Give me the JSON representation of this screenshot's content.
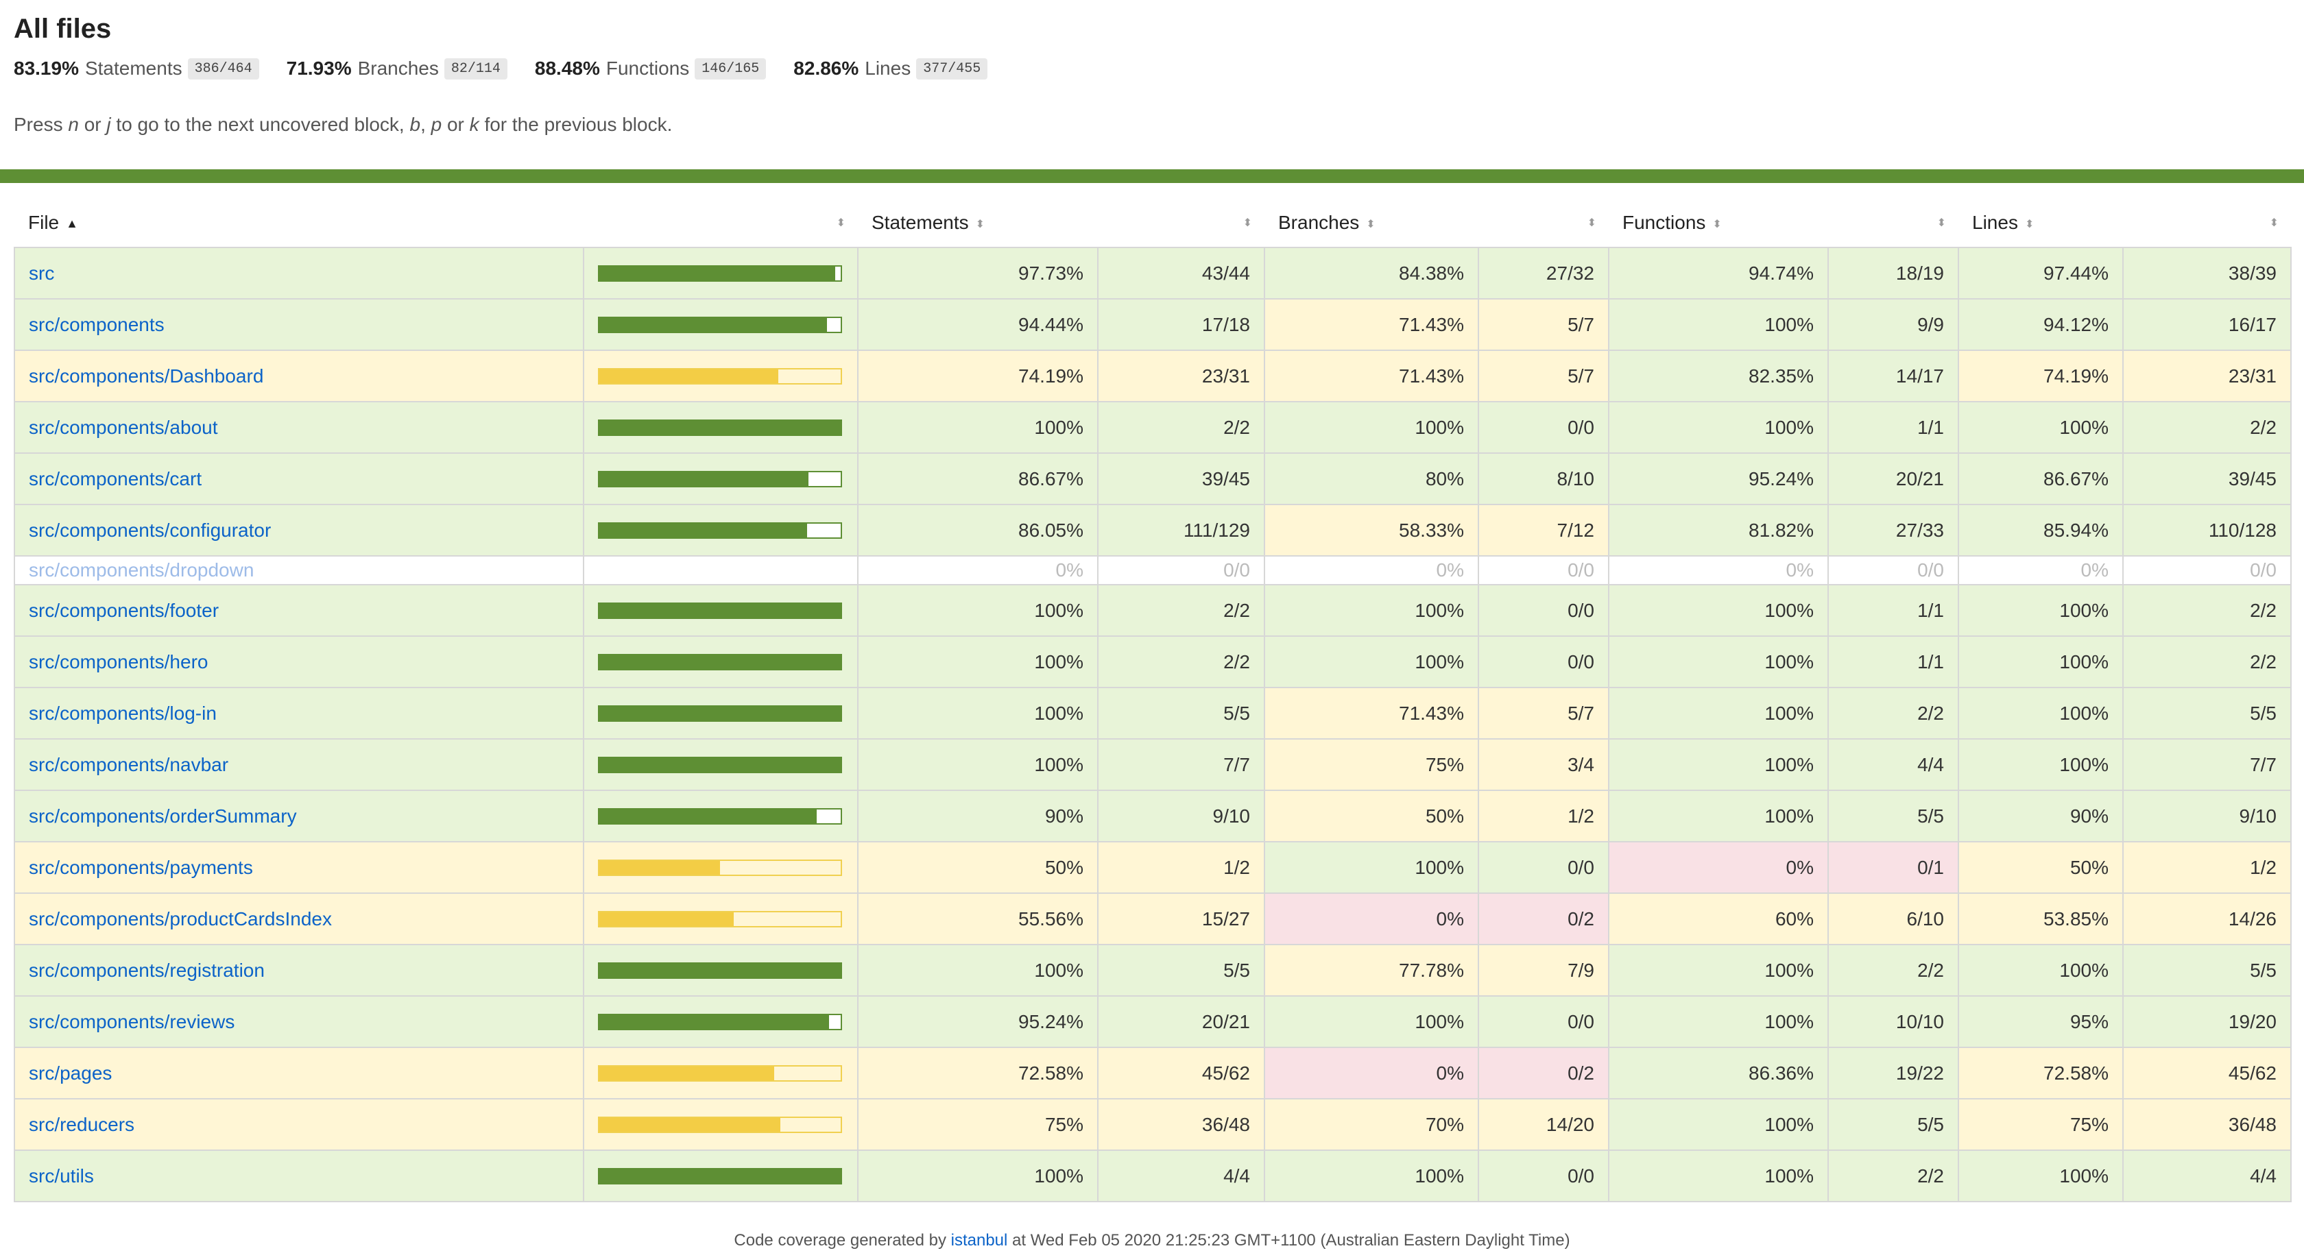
{
  "title": "All files",
  "summary": [
    {
      "pct": "83.19%",
      "label": "Statements",
      "frac": "386/464"
    },
    {
      "pct": "71.93%",
      "label": "Branches",
      "frac": "82/114"
    },
    {
      "pct": "88.48%",
      "label": "Functions",
      "frac": "146/165"
    },
    {
      "pct": "82.86%",
      "label": "Lines",
      "frac": "377/455"
    }
  ],
  "help": {
    "prefix": "Press ",
    "k1": "n",
    "or1": " or ",
    "k2": "j",
    "mid": " to go to the next uncovered block, ",
    "k3": "b",
    "sep": ", ",
    "k4": "p",
    "or2": " or ",
    "k5": "k",
    "suffix": " for the previous block."
  },
  "table": {
    "headers": {
      "file": "File",
      "statements": "Statements",
      "branches": "Branches",
      "functions": "Functions",
      "lines": "Lines"
    },
    "rows": [
      {
        "file": "src",
        "pct": 97.73,
        "row": "high",
        "s": "97.73%",
        "sf": "43/44",
        "sc": "high",
        "b": "84.38%",
        "bf": "27/32",
        "bc": "high",
        "f": "94.74%",
        "ff": "18/19",
        "fc": "high",
        "l": "97.44%",
        "lf": "38/39",
        "lc": "high"
      },
      {
        "file": "src/components",
        "pct": 94.44,
        "row": "high",
        "s": "94.44%",
        "sf": "17/18",
        "sc": "high",
        "b": "71.43%",
        "bf": "5/7",
        "bc": "medium",
        "f": "100%",
        "ff": "9/9",
        "fc": "high",
        "l": "94.12%",
        "lf": "16/17",
        "lc": "high"
      },
      {
        "file": "src/components/Dashboard",
        "pct": 74.19,
        "row": "medium",
        "s": "74.19%",
        "sf": "23/31",
        "sc": "medium",
        "b": "71.43%",
        "bf": "5/7",
        "bc": "medium",
        "f": "82.35%",
        "ff": "14/17",
        "fc": "high",
        "l": "74.19%",
        "lf": "23/31",
        "lc": "medium"
      },
      {
        "file": "src/components/about",
        "pct": 100,
        "row": "high",
        "s": "100%",
        "sf": "2/2",
        "sc": "high",
        "b": "100%",
        "bf": "0/0",
        "bc": "high",
        "f": "100%",
        "ff": "1/1",
        "fc": "high",
        "l": "100%",
        "lf": "2/2",
        "lc": "high"
      },
      {
        "file": "src/components/cart",
        "pct": 86.67,
        "row": "high",
        "s": "86.67%",
        "sf": "39/45",
        "sc": "high",
        "b": "80%",
        "bf": "8/10",
        "bc": "high",
        "f": "95.24%",
        "ff": "20/21",
        "fc": "high",
        "l": "86.67%",
        "lf": "39/45",
        "lc": "high"
      },
      {
        "file": "src/components/configurator",
        "pct": 86.05,
        "row": "high",
        "s": "86.05%",
        "sf": "111/129",
        "sc": "high",
        "b": "58.33%",
        "bf": "7/12",
        "bc": "medium",
        "f": "81.82%",
        "ff": "27/33",
        "fc": "high",
        "l": "85.94%",
        "lf": "110/128",
        "lc": "high"
      },
      {
        "file": "src/components/dropdown",
        "pct": 0,
        "row": "empty",
        "s": "0%",
        "sf": "0/0",
        "sc": "empty",
        "b": "0%",
        "bf": "0/0",
        "bc": "empty",
        "f": "0%",
        "ff": "0/0",
        "fc": "empty",
        "l": "0%",
        "lf": "0/0",
        "lc": "empty"
      },
      {
        "file": "src/components/footer",
        "pct": 100,
        "row": "high",
        "s": "100%",
        "sf": "2/2",
        "sc": "high",
        "b": "100%",
        "bf": "0/0",
        "bc": "high",
        "f": "100%",
        "ff": "1/1",
        "fc": "high",
        "l": "100%",
        "lf": "2/2",
        "lc": "high"
      },
      {
        "file": "src/components/hero",
        "pct": 100,
        "row": "high",
        "s": "100%",
        "sf": "2/2",
        "sc": "high",
        "b": "100%",
        "bf": "0/0",
        "bc": "high",
        "f": "100%",
        "ff": "1/1",
        "fc": "high",
        "l": "100%",
        "lf": "2/2",
        "lc": "high"
      },
      {
        "file": "src/components/log-in",
        "pct": 100,
        "row": "high",
        "s": "100%",
        "sf": "5/5",
        "sc": "high",
        "b": "71.43%",
        "bf": "5/7",
        "bc": "medium",
        "f": "100%",
        "ff": "2/2",
        "fc": "high",
        "l": "100%",
        "lf": "5/5",
        "lc": "high"
      },
      {
        "file": "src/components/navbar",
        "pct": 100,
        "row": "high",
        "s": "100%",
        "sf": "7/7",
        "sc": "high",
        "b": "75%",
        "bf": "3/4",
        "bc": "medium",
        "f": "100%",
        "ff": "4/4",
        "fc": "high",
        "l": "100%",
        "lf": "7/7",
        "lc": "high"
      },
      {
        "file": "src/components/orderSummary",
        "pct": 90,
        "row": "high",
        "s": "90%",
        "sf": "9/10",
        "sc": "high",
        "b": "50%",
        "bf": "1/2",
        "bc": "medium",
        "f": "100%",
        "ff": "5/5",
        "fc": "high",
        "l": "90%",
        "lf": "9/10",
        "lc": "high"
      },
      {
        "file": "src/components/payments",
        "pct": 50,
        "row": "medium",
        "s": "50%",
        "sf": "1/2",
        "sc": "medium",
        "b": "100%",
        "bf": "0/0",
        "bc": "high",
        "f": "0%",
        "ff": "0/1",
        "fc": "low",
        "l": "50%",
        "lf": "1/2",
        "lc": "medium"
      },
      {
        "file": "src/components/productCardsIndex",
        "pct": 55.56,
        "row": "medium",
        "s": "55.56%",
        "sf": "15/27",
        "sc": "medium",
        "b": "0%",
        "bf": "0/2",
        "bc": "low",
        "f": "60%",
        "ff": "6/10",
        "fc": "medium",
        "l": "53.85%",
        "lf": "14/26",
        "lc": "medium"
      },
      {
        "file": "src/components/registration",
        "pct": 100,
        "row": "high",
        "s": "100%",
        "sf": "5/5",
        "sc": "high",
        "b": "77.78%",
        "bf": "7/9",
        "bc": "medium",
        "f": "100%",
        "ff": "2/2",
        "fc": "high",
        "l": "100%",
        "lf": "5/5",
        "lc": "high"
      },
      {
        "file": "src/components/reviews",
        "pct": 95.24,
        "row": "high",
        "s": "95.24%",
        "sf": "20/21",
        "sc": "high",
        "b": "100%",
        "bf": "0/0",
        "bc": "high",
        "f": "100%",
        "ff": "10/10",
        "fc": "high",
        "l": "95%",
        "lf": "19/20",
        "lc": "high"
      },
      {
        "file": "src/pages",
        "pct": 72.58,
        "row": "medium",
        "s": "72.58%",
        "sf": "45/62",
        "sc": "medium",
        "b": "0%",
        "bf": "0/2",
        "bc": "low",
        "f": "86.36%",
        "ff": "19/22",
        "fc": "high",
        "l": "72.58%",
        "lf": "45/62",
        "lc": "medium"
      },
      {
        "file": "src/reducers",
        "pct": 75,
        "row": "medium",
        "s": "75%",
        "sf": "36/48",
        "sc": "medium",
        "b": "70%",
        "bf": "14/20",
        "bc": "medium",
        "f": "100%",
        "ff": "5/5",
        "fc": "high",
        "l": "75%",
        "lf": "36/48",
        "lc": "medium"
      },
      {
        "file": "src/utils",
        "pct": 100,
        "row": "high",
        "s": "100%",
        "sf": "4/4",
        "sc": "high",
        "b": "100%",
        "bf": "0/0",
        "bc": "high",
        "f": "100%",
        "ff": "2/2",
        "fc": "high",
        "l": "100%",
        "lf": "4/4",
        "lc": "high"
      }
    ]
  },
  "footer": {
    "prefix": "Code coverage generated by ",
    "link": "istanbul",
    "suffix": " at Wed Feb 05 2020 21:25:23 GMT+1100 (Australian Eastern Daylight Time)"
  },
  "colors": {
    "high_bar": "#5e8f34",
    "medium_bar": "#f3cd45",
    "high_bg": "#e8f4d8",
    "medium_bg": "#fff6d5",
    "low_bg": "#f9e1e5",
    "link": "#0c63c8"
  },
  "icons": {
    "sort_asc": "triangle-up-icon",
    "sortable": "sort-arrows-icon"
  }
}
